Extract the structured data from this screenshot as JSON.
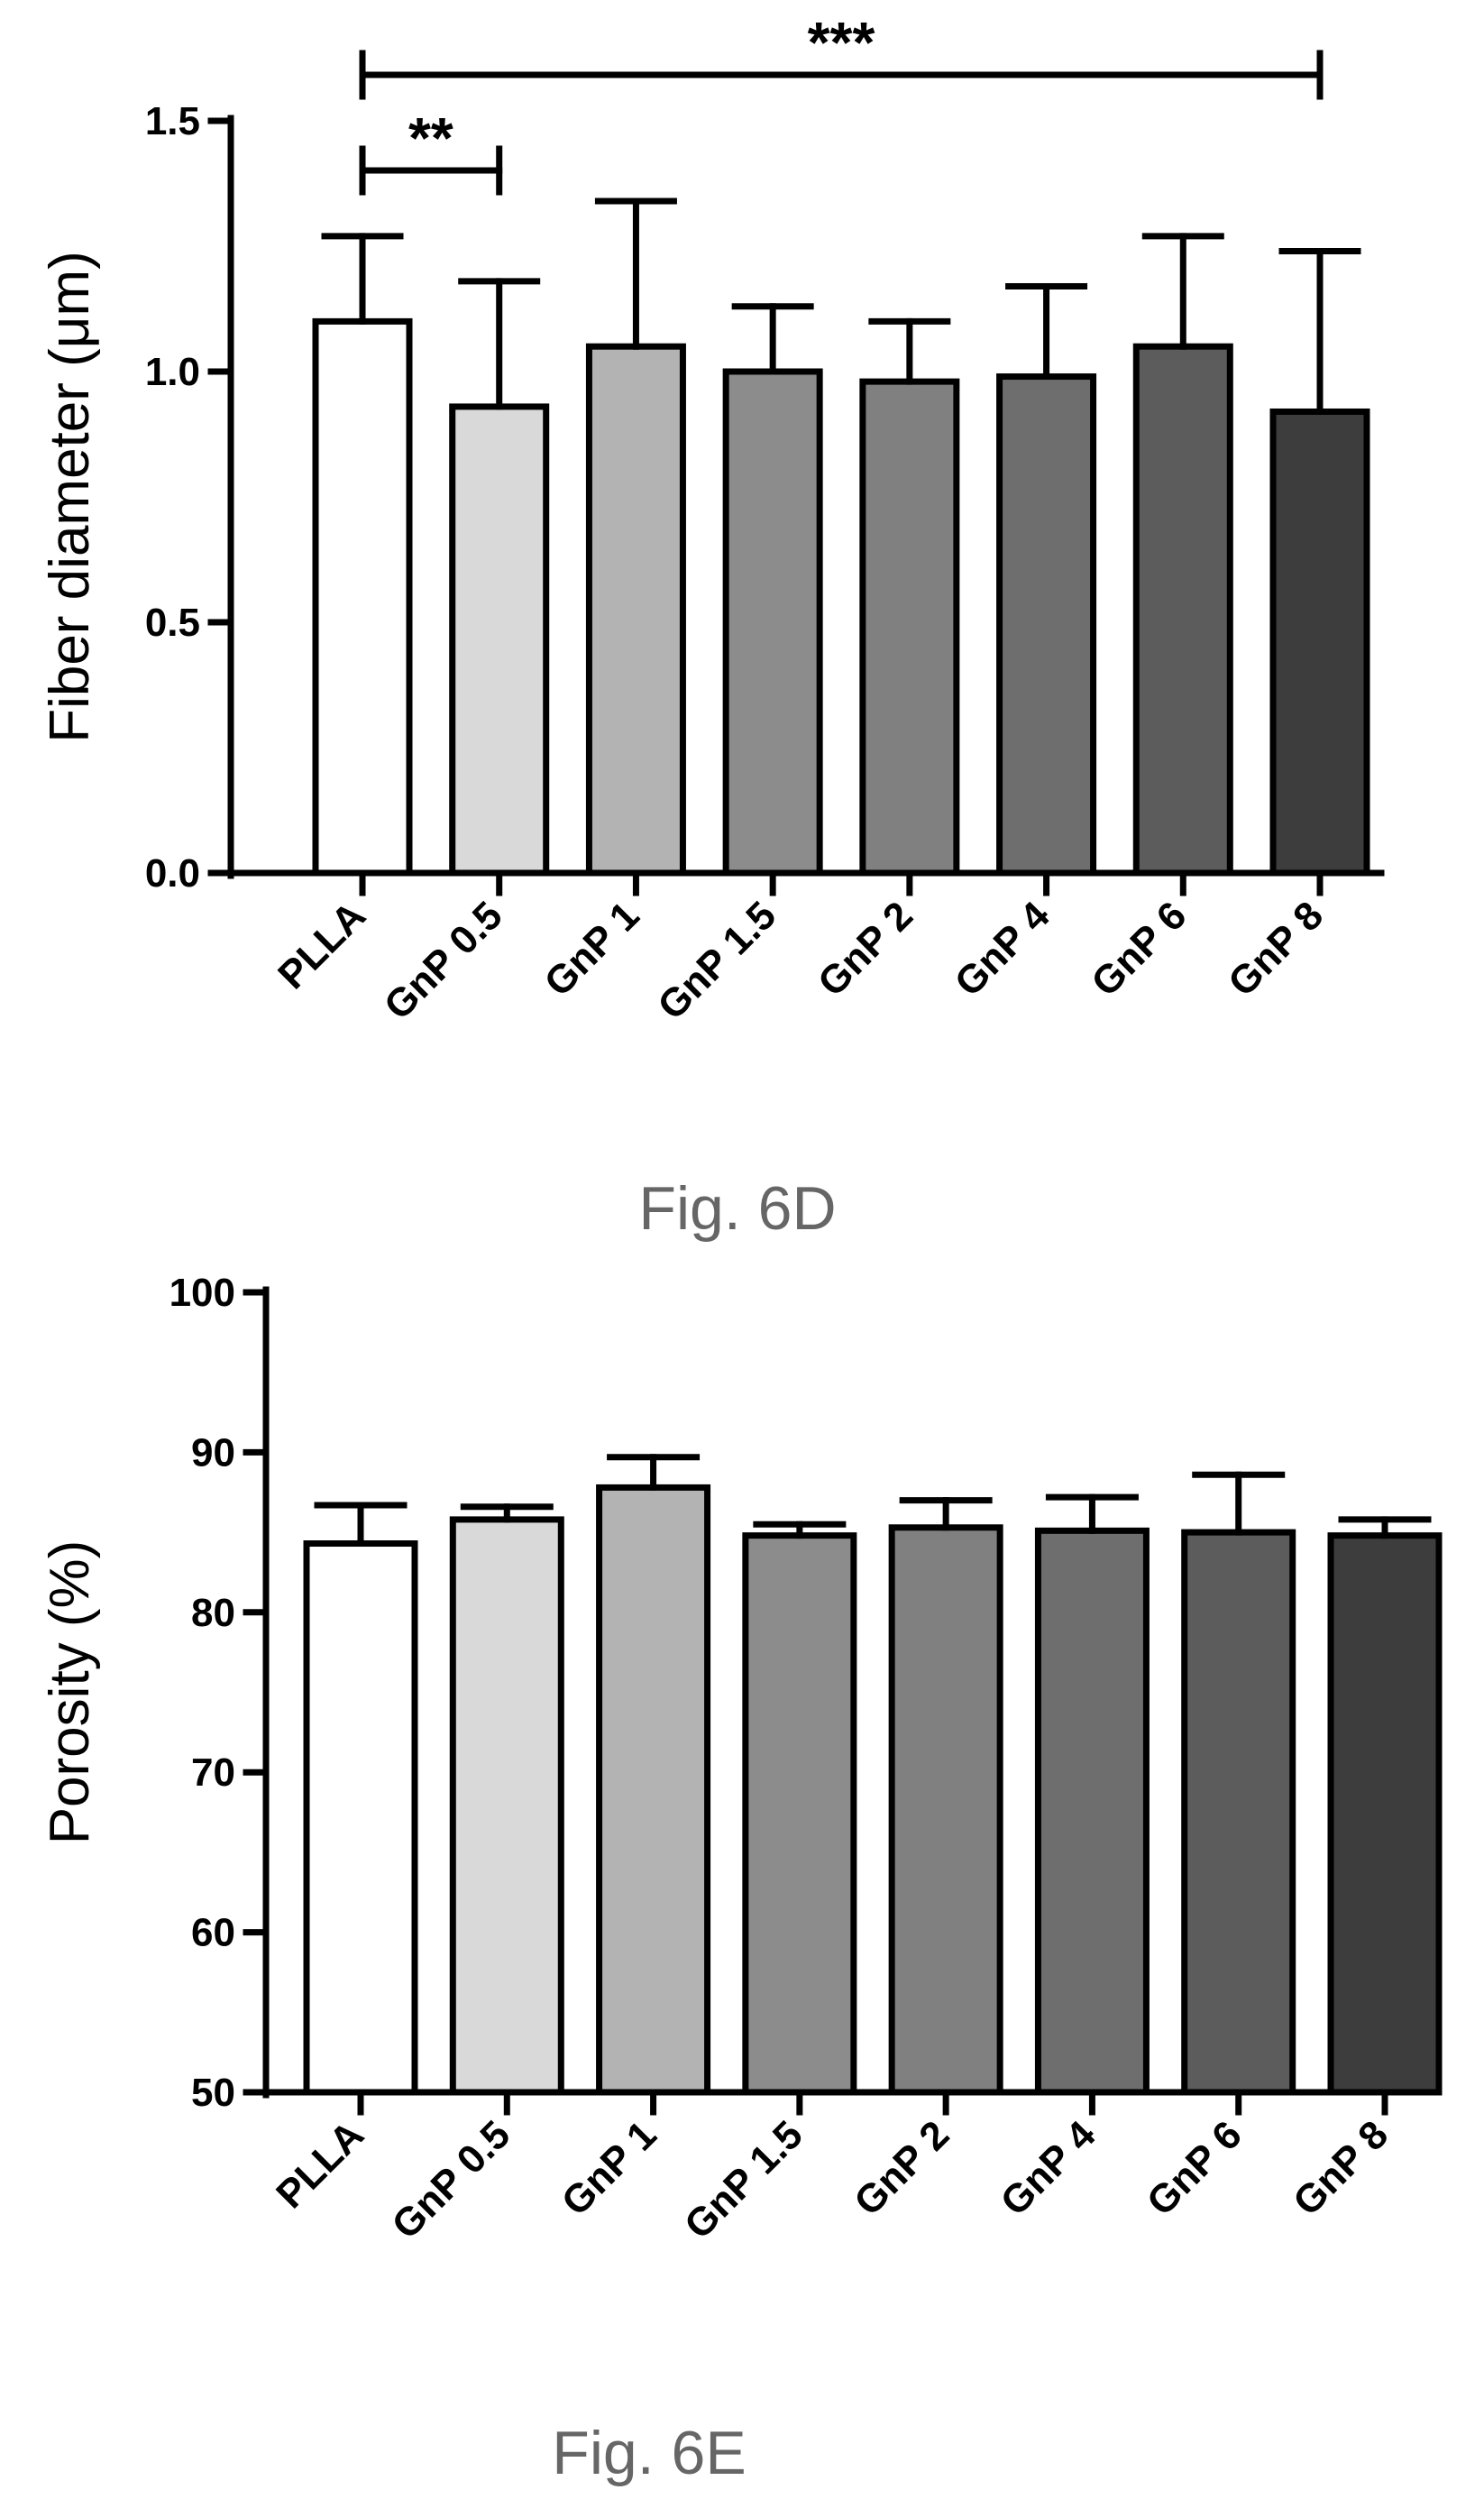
{
  "chart_data": [
    {
      "type": "bar",
      "categories": [
        "PLLA",
        "GnP 0.5",
        "GnP 1",
        "GnP 1.5",
        "GnP 2",
        "GnP 4",
        "GnP 6",
        "GnP 8"
      ],
      "values": [
        1.1,
        0.93,
        1.05,
        1.0,
        0.98,
        0.99,
        1.05,
        0.92
      ],
      "errors": [
        0.17,
        0.25,
        0.29,
        0.13,
        0.12,
        0.18,
        0.22,
        0.32
      ],
      "bar_colors": [
        "#ffffff",
        "#d9d9d9",
        "#b3b3b3",
        "#8c8c8c",
        "#808080",
        "#6e6e6e",
        "#5c5c5c",
        "#3d3d3d"
      ],
      "ylabel": "Fiber diameter (μm)",
      "ylim": [
        0,
        1.5
      ],
      "yticks": [
        "0.0",
        "0.5",
        "1.0",
        "1.5"
      ],
      "ytick_values": [
        0,
        0.5,
        1.0,
        1.5
      ],
      "significance": [
        {
          "from": "PLLA",
          "to": "GnP 0.5",
          "label": "**"
        },
        {
          "from": "PLLA",
          "to": "GnP 8",
          "label": "***"
        }
      ],
      "caption": "Fig. 6D"
    },
    {
      "type": "bar",
      "categories": [
        "PLLA",
        "GnP 0.5",
        "GnP 1",
        "GnP 1.5",
        "GnP 2",
        "GnP 4",
        "GnP 6",
        "GnP 8"
      ],
      "values": [
        84.3,
        85.8,
        87.8,
        84.8,
        85.3,
        85.1,
        85.0,
        84.8
      ],
      "errors": [
        2.4,
        0.8,
        1.9,
        0.7,
        1.7,
        2.1,
        3.6,
        1.0
      ],
      "bar_colors": [
        "#ffffff",
        "#d9d9d9",
        "#b3b3b3",
        "#8c8c8c",
        "#808080",
        "#6e6e6e",
        "#5c5c5c",
        "#3d3d3d"
      ],
      "ylabel": "Porosity (%)",
      "ylim": [
        50,
        100
      ],
      "yticks": [
        "50",
        "60",
        "70",
        "80",
        "90",
        "100"
      ],
      "ytick_values": [
        50,
        60,
        70,
        80,
        90,
        100
      ],
      "significance": [],
      "caption": "Fig. 6E"
    }
  ]
}
